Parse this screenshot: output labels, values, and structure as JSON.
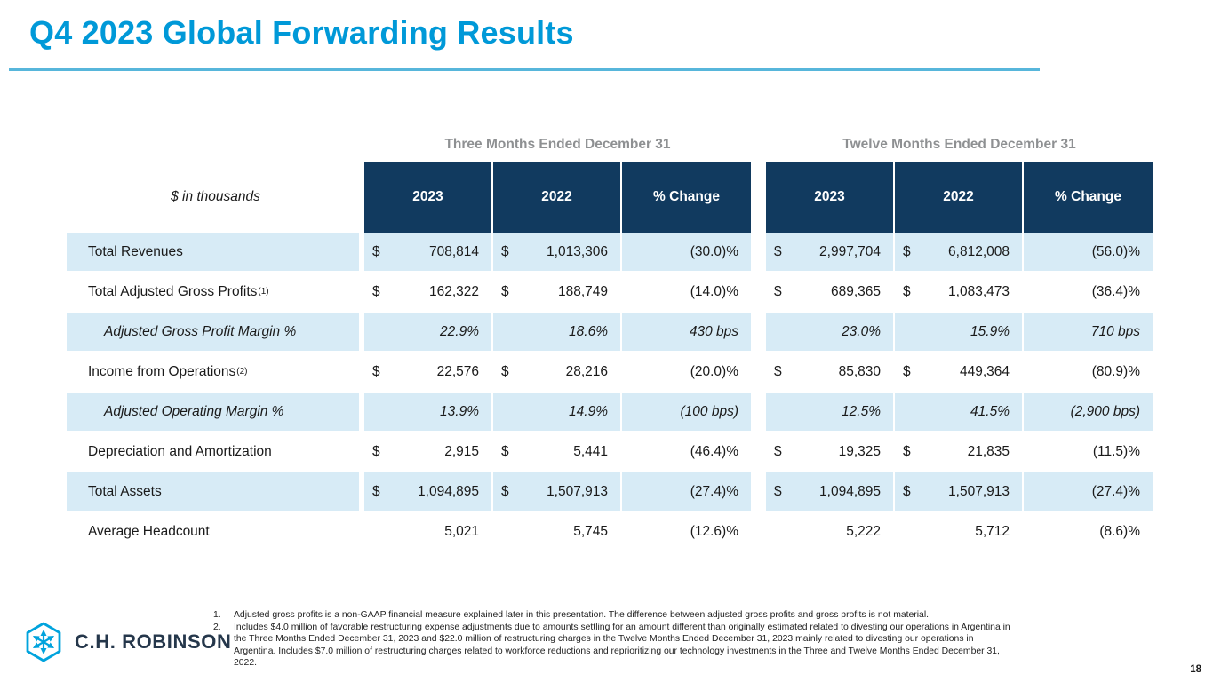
{
  "title": "Q4 2023 Global Forwarding Results",
  "page_number": "18",
  "colors": {
    "accent_blue": "#0099D8",
    "rule_blue": "#57B6DB",
    "header_navy": "#113A5F",
    "row_light_blue": "#D7EBF6",
    "group_title_gray": "#8E9092",
    "logo_cyan": "#00A3DD",
    "logo_navy": "#25374B"
  },
  "table": {
    "unit_label": "$ in thousands",
    "groups": [
      {
        "title": "Three Months Ended December 31",
        "columns": [
          "2023",
          "2022",
          "% Change"
        ]
      },
      {
        "title": "Twelve Months Ended December 31",
        "columns": [
          "2023",
          "2022",
          "% Change"
        ]
      }
    ],
    "rows": [
      {
        "label": "Total Revenues",
        "sup": "",
        "italic": false,
        "shaded": true,
        "cells": [
          {
            "prefix": "$",
            "value": "708,814"
          },
          {
            "prefix": "$",
            "value": "1,013,306"
          },
          {
            "prefix": "",
            "value": "(30.0)%"
          },
          {
            "prefix": "$",
            "value": "2,997,704"
          },
          {
            "prefix": "$",
            "value": "6,812,008"
          },
          {
            "prefix": "",
            "value": "(56.0)%"
          }
        ]
      },
      {
        "label": "Total Adjusted Gross Profits",
        "sup": "(1)",
        "italic": false,
        "shaded": false,
        "cells": [
          {
            "prefix": "$",
            "value": "162,322"
          },
          {
            "prefix": "$",
            "value": "188,749"
          },
          {
            "prefix": "",
            "value": "(14.0)%"
          },
          {
            "prefix": "$",
            "value": "689,365"
          },
          {
            "prefix": "$",
            "value": "1,083,473"
          },
          {
            "prefix": "",
            "value": "(36.4)%"
          }
        ]
      },
      {
        "label": "Adjusted Gross Profit Margin %",
        "sup": "",
        "italic": true,
        "shaded": true,
        "cells": [
          {
            "prefix": "",
            "value": "22.9%"
          },
          {
            "prefix": "",
            "value": "18.6%"
          },
          {
            "prefix": "",
            "value": "430 bps"
          },
          {
            "prefix": "",
            "value": "23.0%"
          },
          {
            "prefix": "",
            "value": "15.9%"
          },
          {
            "prefix": "",
            "value": "710 bps"
          }
        ]
      },
      {
        "label": "Income from Operations",
        "sup": "(2)",
        "italic": false,
        "shaded": false,
        "cells": [
          {
            "prefix": "$",
            "value": "22,576"
          },
          {
            "prefix": "$",
            "value": "28,216"
          },
          {
            "prefix": "",
            "value": "(20.0)%"
          },
          {
            "prefix": "$",
            "value": "85,830"
          },
          {
            "prefix": "$",
            "value": "449,364"
          },
          {
            "prefix": "",
            "value": "(80.9)%"
          }
        ]
      },
      {
        "label": "Adjusted Operating Margin %",
        "sup": "",
        "italic": true,
        "shaded": true,
        "cells": [
          {
            "prefix": "",
            "value": "13.9%"
          },
          {
            "prefix": "",
            "value": "14.9%"
          },
          {
            "prefix": "",
            "value": "(100 bps)"
          },
          {
            "prefix": "",
            "value": "12.5%"
          },
          {
            "prefix": "",
            "value": "41.5%"
          },
          {
            "prefix": "",
            "value": "(2,900 bps)"
          }
        ]
      },
      {
        "label": "Depreciation and Amortization",
        "sup": "",
        "italic": false,
        "shaded": false,
        "cells": [
          {
            "prefix": "$",
            "value": "2,915"
          },
          {
            "prefix": "$",
            "value": "5,441"
          },
          {
            "prefix": "",
            "value": "(46.4)%"
          },
          {
            "prefix": "$",
            "value": "19,325"
          },
          {
            "prefix": "$",
            "value": "21,835"
          },
          {
            "prefix": "",
            "value": "(11.5)%"
          }
        ]
      },
      {
        "label": "Total Assets",
        "sup": "",
        "italic": false,
        "shaded": true,
        "cells": [
          {
            "prefix": "$",
            "value": "1,094,895"
          },
          {
            "prefix": "$",
            "value": "1,507,913"
          },
          {
            "prefix": "",
            "value": "(27.4)%"
          },
          {
            "prefix": "$",
            "value": "1,094,895"
          },
          {
            "prefix": "$",
            "value": "1,507,913"
          },
          {
            "prefix": "",
            "value": "(27.4)%"
          }
        ]
      },
      {
        "label": "Average Headcount",
        "sup": "",
        "italic": false,
        "shaded": false,
        "cells": [
          {
            "prefix": "",
            "value": "5,021"
          },
          {
            "prefix": "",
            "value": "5,745"
          },
          {
            "prefix": "",
            "value": "(12.6)%"
          },
          {
            "prefix": "",
            "value": "5,222"
          },
          {
            "prefix": "",
            "value": "5,712"
          },
          {
            "prefix": "",
            "value": "(8.6)%"
          }
        ]
      }
    ]
  },
  "footnotes": [
    {
      "num": "1.",
      "text": "Adjusted gross profits is a non-GAAP financial measure explained later in this presentation. The difference between adjusted gross profits and gross profits is not material."
    },
    {
      "num": "2.",
      "text": "Includes $4.0 million of favorable restructuring expense adjustments due to amounts settling for an amount different than originally estimated related to divesting our operations in Argentina in the Three Months Ended December 31, 2023 and $22.0 million of restructuring charges in the Twelve Months Ended December 31, 2023 mainly related to divesting our operations in Argentina. Includes $7.0 million of restructuring charges related to workforce reductions and reprioritizing our technology investments in the Three and Twelve Months Ended December 31, 2022."
    }
  ],
  "logo": {
    "text": "C.H. ROBINSON"
  }
}
